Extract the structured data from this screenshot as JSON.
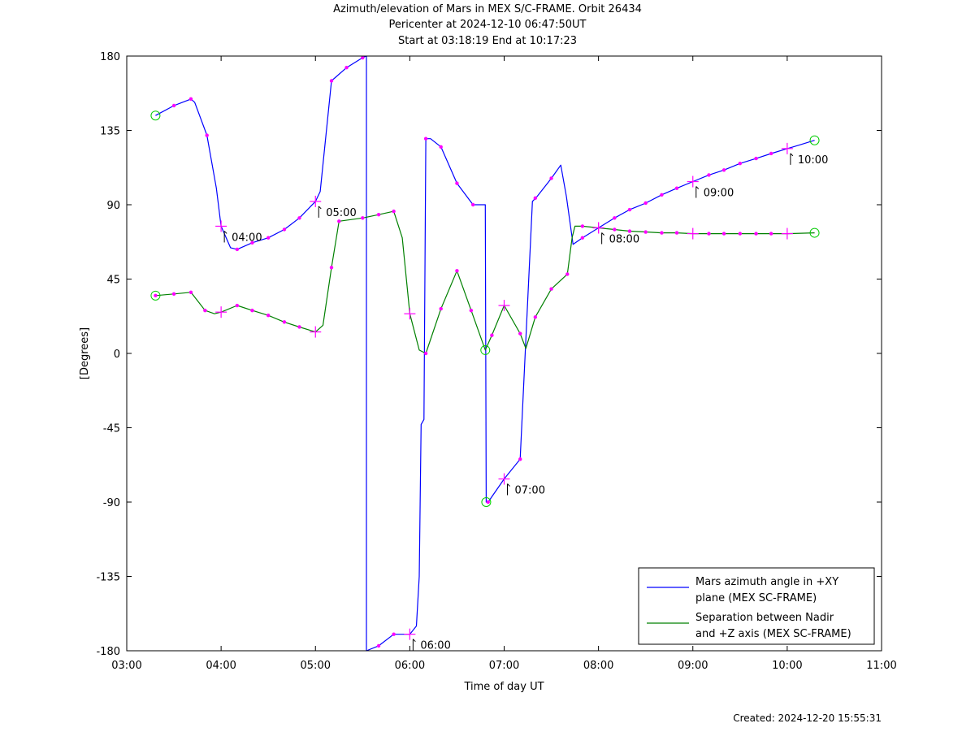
{
  "chart_data": {
    "type": "line",
    "title": [
      "Azimuth/elevation of Mars in MEX S/C-FRAME.  Orbit 26434",
      "Pericenter at 2024-12-10 06:47:50UT",
      "Start at 03:18:19 End at 10:17:23"
    ],
    "xlabel": "Time of day UT",
    "ylabel": "[Degrees]",
    "xlim": [
      3.0,
      11.0
    ],
    "ylim": [
      -180,
      180
    ],
    "x_ticks": [
      3,
      4,
      5,
      6,
      7,
      8,
      9,
      10,
      11
    ],
    "x_tick_labels": [
      "03:00",
      "04:00",
      "05:00",
      "06:00",
      "07:00",
      "08:00",
      "09:00",
      "10:00",
      "11:00"
    ],
    "y_ticks": [
      180,
      135,
      90,
      45,
      0,
      -45,
      -90,
      -135,
      -180
    ],
    "y_tick_labels": [
      "180",
      "135",
      "90",
      "45",
      "0",
      "-45",
      "-90",
      "-135",
      "-180"
    ],
    "legend": {
      "position": "bottom-right",
      "entries": [
        {
          "lines": [
            "Mars azimuth angle in +XY",
            "plane (MEX SC-FRAME)"
          ],
          "color": "#0000ff"
        },
        {
          "lines": [
            "Separation between Nadir",
            "and +Z axis (MEX SC-FRAME)"
          ],
          "color": "#008000"
        }
      ]
    },
    "series": [
      {
        "name": "Mars azimuth angle in +XY plane (MEX SC-FRAME)",
        "color": "#0000ff",
        "points": [
          [
            3.305,
            144
          ],
          [
            3.5,
            150
          ],
          [
            3.68,
            154
          ],
          [
            3.72,
            152
          ],
          [
            3.85,
            132
          ],
          [
            3.95,
            100
          ],
          [
            4.0,
            77
          ],
          [
            4.1,
            64
          ],
          [
            4.17,
            63
          ],
          [
            4.33,
            67
          ],
          [
            4.5,
            70
          ],
          [
            4.67,
            75
          ],
          [
            4.83,
            82
          ],
          [
            5.0,
            92
          ],
          [
            5.05,
            98
          ],
          [
            5.17,
            165
          ],
          [
            5.33,
            173
          ],
          [
            5.5,
            179
          ],
          [
            5.54,
            180
          ],
          [
            5.54,
            -180
          ],
          [
            5.67,
            -177
          ],
          [
            5.83,
            -170
          ],
          [
            6.0,
            -170
          ],
          [
            6.07,
            -165
          ],
          [
            6.1,
            -135
          ],
          [
            6.12,
            -43
          ],
          [
            6.15,
            -40
          ],
          [
            6.17,
            130
          ],
          [
            6.22,
            130
          ],
          [
            6.33,
            125
          ],
          [
            6.5,
            103
          ],
          [
            6.67,
            90
          ],
          [
            6.8,
            90
          ],
          [
            6.81,
            -90
          ],
          [
            6.83,
            -90
          ],
          [
            7.0,
            -76
          ],
          [
            7.17,
            -64
          ],
          [
            7.3,
            92
          ],
          [
            7.35,
            95
          ],
          [
            7.5,
            106
          ],
          [
            7.6,
            114
          ],
          [
            7.66,
            95
          ],
          [
            7.73,
            66
          ],
          [
            7.83,
            70
          ],
          [
            8.0,
            76
          ],
          [
            8.17,
            82
          ],
          [
            8.33,
            87
          ],
          [
            8.5,
            91
          ],
          [
            8.67,
            96
          ],
          [
            8.83,
            100
          ],
          [
            9.0,
            104
          ],
          [
            9.17,
            108
          ],
          [
            9.33,
            111
          ],
          [
            9.5,
            115
          ],
          [
            9.67,
            118
          ],
          [
            9.83,
            121
          ],
          [
            10.0,
            124
          ],
          [
            10.12,
            126
          ],
          [
            10.29,
            129
          ]
        ]
      },
      {
        "name": "Separation between Nadir and +Z axis (MEX SC-FRAME)",
        "color": "#008000",
        "points": [
          [
            3.305,
            35
          ],
          [
            3.5,
            36
          ],
          [
            3.68,
            37
          ],
          [
            3.83,
            26
          ],
          [
            3.93,
            24
          ],
          [
            4.0,
            25
          ],
          [
            4.17,
            29
          ],
          [
            4.33,
            26
          ],
          [
            4.5,
            23
          ],
          [
            4.67,
            19
          ],
          [
            4.83,
            16
          ],
          [
            5.0,
            13
          ],
          [
            5.08,
            17
          ],
          [
            5.17,
            52
          ],
          [
            5.25,
            80
          ],
          [
            5.5,
            82
          ],
          [
            5.67,
            84
          ],
          [
            5.83,
            86
          ],
          [
            5.92,
            70
          ],
          [
            6.0,
            24
          ],
          [
            6.1,
            2
          ],
          [
            6.17,
            0
          ],
          [
            6.33,
            27
          ],
          [
            6.5,
            50
          ],
          [
            6.65,
            26
          ],
          [
            6.8,
            2
          ],
          [
            6.87,
            11
          ],
          [
            7.0,
            29
          ],
          [
            7.17,
            12
          ],
          [
            7.23,
            3
          ],
          [
            7.33,
            22
          ],
          [
            7.5,
            39
          ],
          [
            7.67,
            48
          ],
          [
            7.72,
            70
          ],
          [
            7.75,
            77
          ],
          [
            7.83,
            77
          ],
          [
            8.0,
            76
          ],
          [
            8.17,
            75
          ],
          [
            8.33,
            74
          ],
          [
            8.5,
            73.5
          ],
          [
            8.67,
            73
          ],
          [
            8.83,
            73
          ],
          [
            9.0,
            72.5
          ],
          [
            9.17,
            72.5
          ],
          [
            9.33,
            72.5
          ],
          [
            9.5,
            72.5
          ],
          [
            9.67,
            72.5
          ],
          [
            9.83,
            72.5
          ],
          [
            10.0,
            72.5
          ],
          [
            10.29,
            73
          ]
        ]
      }
    ],
    "markers": {
      "dots": [
        {
          "x": 3.5,
          "y": 150
        },
        {
          "x": 3.68,
          "y": 154
        },
        {
          "x": 3.85,
          "y": 132
        },
        {
          "x": 4.17,
          "y": 63
        },
        {
          "x": 4.33,
          "y": 67
        },
        {
          "x": 4.5,
          "y": 70
        },
        {
          "x": 4.67,
          "y": 75
        },
        {
          "x": 4.83,
          "y": 82
        },
        {
          "x": 5.17,
          "y": 165
        },
        {
          "x": 5.33,
          "y": 173
        },
        {
          "x": 5.5,
          "y": 179
        },
        {
          "x": 5.67,
          "y": -177
        },
        {
          "x": 5.83,
          "y": -170
        },
        {
          "x": 6.17,
          "y": 130
        },
        {
          "x": 6.33,
          "y": 125
        },
        {
          "x": 6.5,
          "y": 103
        },
        {
          "x": 6.67,
          "y": 90
        },
        {
          "x": 6.83,
          "y": -90
        },
        {
          "x": 7.17,
          "y": -64
        },
        {
          "x": 7.33,
          "y": 94
        },
        {
          "x": 7.5,
          "y": 106
        },
        {
          "x": 7.83,
          "y": 70
        },
        {
          "x": 8.17,
          "y": 82
        },
        {
          "x": 8.33,
          "y": 87
        },
        {
          "x": 8.5,
          "y": 91
        },
        {
          "x": 8.67,
          "y": 96
        },
        {
          "x": 8.83,
          "y": 100
        },
        {
          "x": 9.17,
          "y": 108
        },
        {
          "x": 9.33,
          "y": 111
        },
        {
          "x": 9.5,
          "y": 115
        },
        {
          "x": 9.67,
          "y": 118
        },
        {
          "x": 9.83,
          "y": 121
        },
        {
          "x": 3.305,
          "y": 35
        },
        {
          "x": 3.5,
          "y": 36
        },
        {
          "x": 3.68,
          "y": 37
        },
        {
          "x": 3.83,
          "y": 26
        },
        {
          "x": 4.17,
          "y": 29
        },
        {
          "x": 4.33,
          "y": 26
        },
        {
          "x": 4.5,
          "y": 23
        },
        {
          "x": 4.67,
          "y": 19
        },
        {
          "x": 4.83,
          "y": 16
        },
        {
          "x": 5.17,
          "y": 52
        },
        {
          "x": 5.25,
          "y": 80
        },
        {
          "x": 5.5,
          "y": 82
        },
        {
          "x": 5.67,
          "y": 84
        },
        {
          "x": 5.83,
          "y": 86
        },
        {
          "x": 6.17,
          "y": 0
        },
        {
          "x": 6.33,
          "y": 27
        },
        {
          "x": 6.5,
          "y": 50
        },
        {
          "x": 6.65,
          "y": 26
        },
        {
          "x": 6.87,
          "y": 11
        },
        {
          "x": 7.17,
          "y": 12
        },
        {
          "x": 7.33,
          "y": 22
        },
        {
          "x": 7.5,
          "y": 39
        },
        {
          "x": 7.67,
          "y": 48
        },
        {
          "x": 7.83,
          "y": 77
        },
        {
          "x": 8.17,
          "y": 75
        },
        {
          "x": 8.33,
          "y": 74
        },
        {
          "x": 8.5,
          "y": 73.5
        },
        {
          "x": 8.67,
          "y": 73
        },
        {
          "x": 8.83,
          "y": 73
        },
        {
          "x": 9.17,
          "y": 72.5
        },
        {
          "x": 9.33,
          "y": 72.5
        },
        {
          "x": 9.5,
          "y": 72.5
        },
        {
          "x": 9.67,
          "y": 72.5
        },
        {
          "x": 9.83,
          "y": 72.5
        }
      ],
      "crosses": [
        {
          "x": 4.0,
          "y": 77
        },
        {
          "x": 5.0,
          "y": 92
        },
        {
          "x": 6.0,
          "y": -170
        },
        {
          "x": 7.0,
          "y": -76
        },
        {
          "x": 8.0,
          "y": 76
        },
        {
          "x": 9.0,
          "y": 104
        },
        {
          "x": 10.0,
          "y": 124
        },
        {
          "x": 4.0,
          "y": 25
        },
        {
          "x": 5.0,
          "y": 13
        },
        {
          "x": 6.0,
          "y": 24
        },
        {
          "x": 7.0,
          "y": 29
        },
        {
          "x": 8.0,
          "y": 76
        },
        {
          "x": 9.0,
          "y": 72.5
        },
        {
          "x": 10.0,
          "y": 72.5
        }
      ],
      "circles": [
        {
          "x": 3.305,
          "y": 144
        },
        {
          "x": 10.29,
          "y": 129
        },
        {
          "x": 6.81,
          "y": -90
        },
        {
          "x": 3.305,
          "y": 35
        },
        {
          "x": 10.29,
          "y": 73
        },
        {
          "x": 6.8,
          "y": 2
        }
      ]
    },
    "hour_annotations": [
      {
        "label": "04:00",
        "x": 4.0,
        "y": 77
      },
      {
        "label": "05:00",
        "x": 5.0,
        "y": 92
      },
      {
        "label": "06:00",
        "x": 6.0,
        "y": -170
      },
      {
        "label": "07:00",
        "x": 7.0,
        "y": -76
      },
      {
        "label": "08:00",
        "x": 8.0,
        "y": 76
      },
      {
        "label": "09:00",
        "x": 9.0,
        "y": 104
      },
      {
        "label": "10:00",
        "x": 10.0,
        "y": 124
      }
    ]
  },
  "footer": {
    "created": "Created: 2024-12-20 15:55:31"
  }
}
